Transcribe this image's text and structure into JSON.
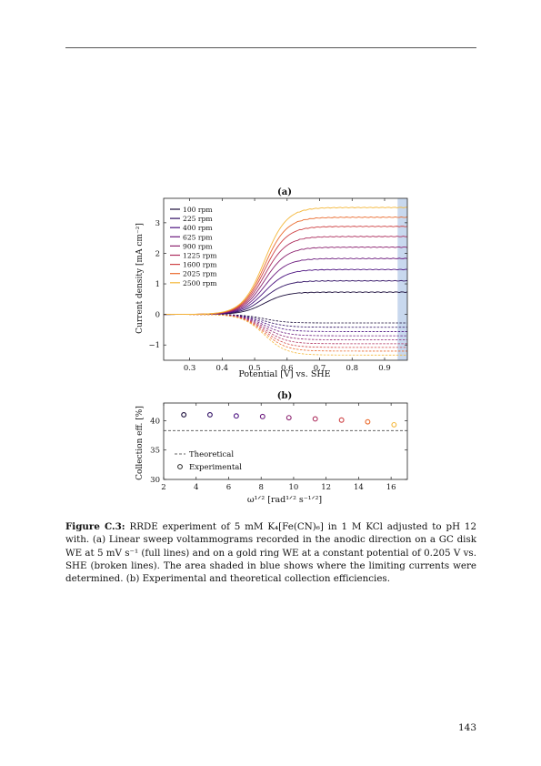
{
  "page_number": "143",
  "caption": {
    "label": "Figure C.3:",
    "text": "RRDE experiment of 5 mM K₄[Fe(CN)₆] in 1 M KCl adjusted to pH 12 with. (a) Linear sweep voltammograms recorded in the anodic direction on a GC disk WE at 5 mV s⁻¹ (full lines) and on a gold ring WE at a constant potential of 0.205 V vs. SHE (broken lines). The area shaded in blue shows where the limiting currents were determined. (b) Experimental and theoretical collection efficiencies."
  },
  "chart_data": [
    {
      "panel": "(a)",
      "type": "line",
      "xlabel": "Potential [V] vs. SHE",
      "ylabel": "Current density [mA cm⁻²]",
      "xlim": [
        0.22,
        0.97
      ],
      "ylim": [
        -1.5,
        3.8
      ],
      "xticks": [
        0.3,
        0.4,
        0.5,
        0.6,
        0.7,
        0.8,
        0.9
      ],
      "xtick_labels": [
        "0.3",
        "0.4",
        "0.5",
        "0.6",
        "0.7",
        "0.8",
        "0.9"
      ],
      "yticks": [
        -1,
        0,
        1,
        2,
        3
      ],
      "ytick_labels": [
        "−1",
        "0",
        "1",
        "2",
        "3"
      ],
      "legend_position": "top-left",
      "shaded_region": {
        "x": [
          0.94,
          0.97
        ],
        "color": "#c8d8ee",
        "meaning": "limiting current range"
      },
      "series": [
        {
          "name": "100 rpm",
          "color": "#1a0c3a",
          "disk_limit": 0.73,
          "ring_limit": -0.28
        },
        {
          "name": "225 rpm",
          "color": "#2f0f63",
          "disk_limit": 1.1,
          "ring_limit": -0.42
        },
        {
          "name": "400 rpm",
          "color": "#4b1280",
          "disk_limit": 1.47,
          "ring_limit": -0.56
        },
        {
          "name": "625 rpm",
          "color": "#6b1a7d",
          "disk_limit": 1.83,
          "ring_limit": -0.7
        },
        {
          "name": "900 rpm",
          "color": "#8c2370",
          "disk_limit": 2.2,
          "ring_limit": -0.83
        },
        {
          "name": "1225 rpm",
          "color": "#ad2f5e",
          "disk_limit": 2.55,
          "ring_limit": -0.96
        },
        {
          "name": "1600 rpm",
          "color": "#cf4446",
          "disk_limit": 2.88,
          "ring_limit": -1.08
        },
        {
          "name": "2025 rpm",
          "color": "#ea6a2c",
          "disk_limit": 3.18,
          "ring_limit": -1.2
        },
        {
          "name": "2500 rpm",
          "color": "#f4b73a",
          "disk_limit": 3.5,
          "ring_limit": -1.33
        }
      ],
      "half_wave_potential": 0.53
    },
    {
      "panel": "(b)",
      "type": "scatter",
      "xlabel": "ω¹ᐟ² [rad¹ᐟ² s⁻¹ᐟ²]",
      "ylabel": "Collection eff. [%]",
      "xlim": [
        2,
        17
      ],
      "ylim": [
        30,
        43
      ],
      "xticks": [
        2,
        4,
        6,
        8,
        10,
        12,
        14,
        16
      ],
      "xtick_labels": [
        "2",
        "4",
        "6",
        "8",
        "10",
        "12",
        "14",
        "16"
      ],
      "yticks": [
        30,
        35,
        40
      ],
      "ytick_labels": [
        "30",
        "35",
        "40"
      ],
      "legend_position": "bottom-left",
      "legend": [
        "Theoretical",
        "Experimental"
      ],
      "theoretical": 38.3,
      "x": [
        3.24,
        4.85,
        6.47,
        8.09,
        9.71,
        11.33,
        12.95,
        14.56,
        16.18
      ],
      "y": [
        41.0,
        41.0,
        40.8,
        40.7,
        40.5,
        40.3,
        40.1,
        39.8,
        39.3
      ],
      "colors": [
        "#1a0c3a",
        "#2f0f63",
        "#4b1280",
        "#6b1a7d",
        "#8c2370",
        "#ad2f5e",
        "#cf4446",
        "#ea6a2c",
        "#f4b73a"
      ]
    }
  ]
}
